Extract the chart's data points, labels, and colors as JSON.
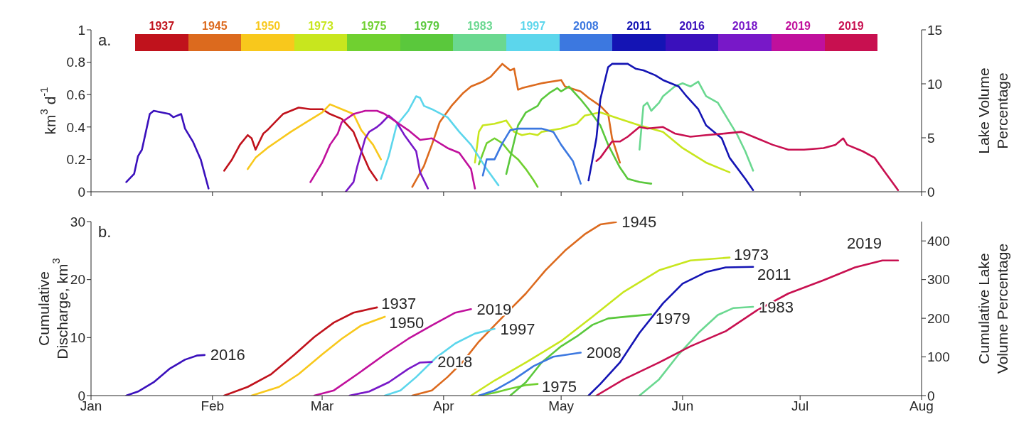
{
  "chart_data": [
    {
      "type": "line",
      "ylabel": "km$^{3}$ d$^{-1}$",
      "y2label": "Lake Volume Percentage",
      "annotations": [
        "a."
      ],
      "xlim": [
        "--01-01",
        "--08-01"
      ],
      "xticks": [
        {
          "value": "--01-01",
          "label": null
        },
        {
          "value": "--02-01",
          "label": null
        },
        {
          "value": "--03-01",
          "label": null
        },
        {
          "value": "--04-01",
          "label": null
        },
        {
          "value": "--05-01",
          "label": null
        },
        {
          "value": "--06-01",
          "label": null
        },
        {
          "value": "--07-01",
          "label": null
        },
        {
          "value": "--08-01",
          "label": null
        }
      ],
      "ylim": [
        0,
        1
      ],
      "yticks": [
        0,
        0.2,
        0.4,
        0.6,
        0.8,
        1
      ],
      "y2lim": [
        0,
        15
      ],
      "y2ticks": [
        0,
        5,
        10,
        15
      ],
      "tick_labels": "y",
      "legend": "top",
      "series": [
        {
          "name": "1937",
          "color": "#c0121c",
          "x": [
            "--02-04",
            "--02-06",
            "--02-08",
            "--02-10",
            "--02-11",
            "--02-12",
            "--02-14",
            "--02-15",
            "--02-17",
            "--02-19",
            "--02-23",
            "--02-26",
            "--03-01",
            "--03-03",
            "--03-06",
            "--03-09",
            "--03-11",
            "--03-13",
            "--03-15"
          ],
          "values": [
            0.13,
            0.2,
            0.29,
            0.35,
            0.33,
            0.26,
            0.36,
            0.38,
            0.43,
            0.48,
            0.52,
            0.51,
            0.51,
            0.48,
            0.45,
            0.37,
            0.25,
            0.14,
            0.07
          ]
        },
        {
          "name": "1945",
          "color": "#dc6a1e",
          "x": [
            "--03-24",
            "--03-27",
            "--03-29",
            "--03-31",
            "--04-03",
            "--04-06",
            "--04-08",
            "--04-11",
            "--04-13",
            "--04-16",
            "--04-18",
            "--04-19",
            "--04-20",
            "--04-21",
            "--04-26",
            "--05-01",
            "--05-02",
            "--05-06",
            "--05-08",
            "--05-11",
            "--05-13",
            "--05-14",
            "--05-16"
          ],
          "values": [
            0.03,
            0.16,
            0.29,
            0.43,
            0.53,
            0.61,
            0.65,
            0.68,
            0.71,
            0.79,
            0.75,
            0.76,
            0.63,
            0.64,
            0.67,
            0.69,
            0.65,
            0.62,
            0.58,
            0.53,
            0.48,
            0.33,
            0.18
          ]
        },
        {
          "name": "1950",
          "color": "#f8c81c",
          "x": [
            "--02-10",
            "--02-12",
            "--02-15",
            "--02-18",
            "--02-21",
            "--02-25",
            "--03-01",
            "--03-03",
            "--03-06",
            "--03-09",
            "--03-11",
            "--03-14",
            "--03-16"
          ],
          "values": [
            0.14,
            0.21,
            0.27,
            0.32,
            0.37,
            0.43,
            0.49,
            0.54,
            0.51,
            0.48,
            0.38,
            0.29,
            0.2
          ]
        },
        {
          "name": "1973",
          "color": "#c8e61e",
          "x": [
            "--04-09",
            "--04-10",
            "--04-11",
            "--04-14",
            "--04-17",
            "--04-19",
            "--04-21",
            "--04-23",
            "--04-25",
            "--04-26",
            "--05-01",
            "--05-05",
            "--05-07",
            "--05-11",
            "--05-16",
            "--05-21",
            "--05-27",
            "--06-01",
            "--06-07",
            "--06-12",
            "--06-13"
          ],
          "values": [
            0.18,
            0.37,
            0.41,
            0.42,
            0.44,
            0.37,
            0.35,
            0.36,
            0.35,
            0.37,
            0.39,
            0.42,
            0.47,
            0.49,
            0.45,
            0.41,
            0.37,
            0.27,
            0.18,
            0.13,
            0.12
          ]
        },
        {
          "name": "1975",
          "color": "#70d030",
          "x": [
            "--04-10",
            "--04-12",
            "--04-14",
            "--04-16",
            "--04-18",
            "--04-20",
            "--04-22",
            "--04-24",
            "--04-25"
          ],
          "values": [
            0.17,
            0.3,
            0.33,
            0.3,
            0.24,
            0.2,
            0.14,
            0.07,
            0.03
          ]
        },
        {
          "name": "1979",
          "color": "#5ac83c",
          "x": [
            "--04-17",
            "--04-18",
            "--04-20",
            "--04-22",
            "--04-25",
            "--04-26",
            "--04-28",
            "--04-30",
            "--05-01",
            "--05-03",
            "--05-06",
            "--05-08",
            "--05-11",
            "--05-13",
            "--05-16",
            "--05-18",
            "--05-21",
            "--05-24"
          ],
          "values": [
            0.11,
            0.21,
            0.41,
            0.49,
            0.53,
            0.57,
            0.61,
            0.64,
            0.62,
            0.65,
            0.57,
            0.51,
            0.41,
            0.29,
            0.15,
            0.08,
            0.06,
            0.05
          ]
        },
        {
          "name": "1983",
          "color": "#6ad890",
          "x": [
            "--05-21",
            "--05-22",
            "--05-23",
            "--05-24",
            "--05-26",
            "--05-27",
            "--05-30",
            "--06-01",
            "--06-03",
            "--06-05",
            "--06-07",
            "--06-10",
            "--06-12",
            "--06-15",
            "--06-17",
            "--06-19"
          ],
          "values": [
            0.26,
            0.53,
            0.55,
            0.5,
            0.55,
            0.59,
            0.65,
            0.67,
            0.65,
            0.68,
            0.59,
            0.55,
            0.47,
            0.35,
            0.25,
            0.13
          ]
        },
        {
          "name": "1997",
          "color": "#5cd6ec",
          "x": [
            "--03-16",
            "--03-18",
            "--03-20",
            "--03-23",
            "--03-25",
            "--03-26",
            "--03-27",
            "--03-29",
            "--04-02",
            "--04-05",
            "--04-08",
            "--04-12",
            "--04-15"
          ],
          "values": [
            0.08,
            0.22,
            0.41,
            0.5,
            0.59,
            0.58,
            0.53,
            0.51,
            0.46,
            0.37,
            0.29,
            0.14,
            0.04
          ]
        },
        {
          "name": "2008",
          "color": "#3c78e0",
          "x": [
            "--04-11",
            "--04-12",
            "--04-14",
            "--04-16",
            "--04-18",
            "--04-20",
            "--04-26",
            "--04-29",
            "--05-01",
            "--05-04",
            "--05-06"
          ],
          "values": [
            0.1,
            0.2,
            0.2,
            0.3,
            0.38,
            0.39,
            0.39,
            0.37,
            0.29,
            0.19,
            0.05
          ]
        },
        {
          "name": "2011",
          "color": "#1414b4",
          "x": [
            "--05-08",
            "--05-10",
            "--05-11",
            "--05-13",
            "--05-14",
            "--05-18",
            "--05-20",
            "--05-22",
            "--05-25",
            "--05-27",
            "--05-31",
            "--06-02",
            "--06-05",
            "--06-07",
            "--06-11",
            "--06-13",
            "--06-17",
            "--06-19"
          ],
          "values": [
            0.07,
            0.33,
            0.57,
            0.77,
            0.79,
            0.79,
            0.76,
            0.75,
            0.72,
            0.69,
            0.65,
            0.59,
            0.51,
            0.41,
            0.33,
            0.21,
            0.08,
            0.01
          ]
        },
        {
          "name": "2016",
          "color": "#3a10bc",
          "x": [
            "--01-10",
            "--01-12",
            "--01-13",
            "--01-14",
            "--01-15",
            "--01-16",
            "--01-17",
            "--01-19",
            "--01-21",
            "--01-22",
            "--01-24",
            "--01-25",
            "--01-27",
            "--01-29",
            "--01-31"
          ],
          "values": [
            0.06,
            0.11,
            0.22,
            0.26,
            0.37,
            0.48,
            0.5,
            0.49,
            0.48,
            0.46,
            0.48,
            0.39,
            0.31,
            0.2,
            0.02
          ]
        },
        {
          "name": "2018",
          "color": "#7818c8",
          "x": [
            "--03-07",
            "--03-09",
            "--03-10",
            "--03-12",
            "--03-13",
            "--03-15",
            "--03-16",
            "--03-18",
            "--03-20",
            "--03-22",
            "--03-25",
            "--03-26",
            "--03-28"
          ],
          "values": [
            0,
            0.06,
            0.16,
            0.33,
            0.37,
            0.4,
            0.42,
            0.47,
            0.43,
            0.35,
            0.25,
            0.12,
            0.02
          ]
        },
        {
          "name": "2019",
          "color": "#c0109c",
          "x": [
            "--02-26",
            "--02-28",
            "--03-01",
            "--03-03",
            "--03-05",
            "--03-06",
            "--03-09",
            "--03-12",
            "--03-15",
            "--03-17",
            "--03-20",
            "--03-23",
            "--03-26",
            "--03-29",
            "--04-02",
            "--04-05",
            "--04-08",
            "--04-09"
          ],
          "values": [
            0.06,
            0.14,
            0.18,
            0.29,
            0.36,
            0.43,
            0.48,
            0.5,
            0.5,
            0.48,
            0.43,
            0.38,
            0.32,
            0.33,
            0.27,
            0.24,
            0.14,
            0.02
          ]
        },
        {
          "name": "2019",
          "color": "#c81050",
          "x": [
            "--05-10",
            "--05-11",
            "--05-14",
            "--05-16",
            "--05-18",
            "--05-21",
            "--05-23",
            "--05-27",
            "--05-30",
            "--06-03",
            "--06-07",
            "--06-12",
            "--06-16",
            "--06-20",
            "--06-24",
            "--06-28",
            "--07-02",
            "--07-07",
            "--07-10",
            "--07-12",
            "--07-13",
            "--07-17",
            "--07-20",
            "--07-23",
            "--07-26"
          ],
          "values": [
            0.19,
            0.21,
            0.31,
            0.31,
            0.34,
            0.4,
            0.39,
            0.4,
            0.36,
            0.34,
            0.35,
            0.36,
            0.37,
            0.33,
            0.29,
            0.26,
            0.26,
            0.27,
            0.29,
            0.33,
            0.29,
            0.25,
            0.21,
            0.11,
            0.01
          ]
        }
      ]
    },
    {
      "type": "line",
      "ylabel": "Cumulative Discharge, km$^{3}$",
      "y2label": "Cumulative Lake Volume Percentage",
      "annotations": [
        "b."
      ],
      "xlim": [
        "--01-01",
        "--08-01"
      ],
      "xticks": [
        {
          "value": "--01-01",
          "label": "Jan"
        },
        {
          "value": "--02-01",
          "label": "Feb"
        },
        {
          "value": "--03-01",
          "label": "Mar"
        },
        {
          "value": "--04-01",
          "label": "Apr"
        },
        {
          "value": "--05-01",
          "label": "May"
        },
        {
          "value": "--06-01",
          "label": "Jun"
        },
        {
          "value": "--07-01",
          "label": "Jul"
        },
        {
          "value": "--08-01",
          "label": "Aug"
        }
      ],
      "ylim": [
        0,
        30
      ],
      "yticks": [
        0,
        10,
        20,
        30
      ],
      "y2lim": [
        0,
        450
      ],
      "y2ticks": [
        0,
        100,
        200,
        300,
        400
      ],
      "legend": false,
      "series": [
        {
          "name": "1937",
          "color": "#c0121c",
          "x": [
            "--02-04",
            "--02-10",
            "--02-16",
            "--02-22",
            "--02-27",
            "--03-04",
            "--03-09",
            "--03-13",
            "--03-15"
          ],
          "values": [
            0,
            1.5,
            3.7,
            7.1,
            10.1,
            12.6,
            14.3,
            14.9,
            15.2
          ]
        },
        {
          "name": "1945",
          "color": "#dc6a1e",
          "x": [
            "--03-24",
            "--03-29",
            "--04-02",
            "--04-06",
            "--04-10",
            "--04-14",
            "--04-17",
            "--04-22",
            "--04-27",
            "--05-02",
            "--05-07",
            "--05-11",
            "--05-15"
          ],
          "values": [
            0,
            0.9,
            3.2,
            5.9,
            9.3,
            12.1,
            14.2,
            17.6,
            21.6,
            25,
            27.8,
            29.5,
            29.9
          ]
        },
        {
          "name": "1950",
          "color": "#f8c81c",
          "x": [
            "--02-11",
            "--02-18",
            "--02-23",
            "--03-01",
            "--03-06",
            "--03-11",
            "--03-17"
          ],
          "values": [
            0,
            1.5,
            3.7,
            7.1,
            9.8,
            12.1,
            13.6
          ]
        },
        {
          "name": "1973",
          "color": "#c8e61e",
          "x": [
            "--04-08",
            "--04-14",
            "--04-22",
            "--05-01",
            "--05-09",
            "--05-17",
            "--05-26",
            "--06-03",
            "--06-13"
          ],
          "values": [
            0,
            2.6,
            5.7,
            9.4,
            13.6,
            17.9,
            21.6,
            23.3,
            23.8
          ]
        },
        {
          "name": "1975",
          "color": "#70d030",
          "x": [
            "--04-10",
            "--04-14",
            "--04-18",
            "--04-22",
            "--04-25"
          ],
          "values": [
            0,
            0.5,
            1.2,
            1.8,
            2
          ]
        },
        {
          "name": "1979",
          "color": "#5ac83c",
          "x": [
            "--04-18",
            "--04-22",
            "--04-26",
            "--05-01",
            "--05-05",
            "--05-09",
            "--05-13",
            "--05-19",
            "--05-24"
          ],
          "values": [
            0,
            2.3,
            5.7,
            8.5,
            10.2,
            12.2,
            13.3,
            13.7,
            14
          ]
        },
        {
          "name": "1983",
          "color": "#6ad890",
          "x": [
            "--05-21",
            "--05-26",
            "--05-31",
            "--06-05",
            "--06-10",
            "--06-14",
            "--06-19"
          ],
          "values": [
            0,
            2.8,
            7.1,
            10.8,
            13.9,
            15.1,
            15.3
          ]
        },
        {
          "name": "1997",
          "color": "#5cd6ec",
          "x": [
            "--03-17",
            "--03-21",
            "--03-25",
            "--03-30",
            "--04-04",
            "--04-09",
            "--04-14"
          ],
          "values": [
            0,
            0.9,
            3.2,
            6.5,
            9,
            10.7,
            11.5
          ]
        },
        {
          "name": "2008",
          "color": "#3c78e0",
          "x": [
            "--04-10",
            "--04-14",
            "--04-19",
            "--04-24",
            "--04-29",
            "--05-06"
          ],
          "values": [
            0,
            0.9,
            2.8,
            5.1,
            6.7,
            7.4
          ]
        },
        {
          "name": "2011",
          "color": "#1414b4",
          "x": [
            "--05-08",
            "--05-11",
            "--05-16",
            "--05-21",
            "--05-27",
            "--06-01",
            "--06-07",
            "--06-12",
            "--06-19"
          ],
          "values": [
            0,
            2,
            5.7,
            10.8,
            15.9,
            19.3,
            21.3,
            22.1,
            22.2
          ]
        },
        {
          "name": "2016",
          "color": "#3a10bc",
          "x": [
            "--01-10",
            "--01-13",
            "--01-17",
            "--01-21",
            "--01-25",
            "--01-28",
            "--01-30"
          ],
          "values": [
            0,
            0.7,
            2.3,
            4.6,
            6.2,
            6.9,
            7
          ]
        },
        {
          "name": "2018",
          "color": "#7818c8",
          "x": [
            "--03-08",
            "--03-13",
            "--03-18",
            "--03-23",
            "--03-26",
            "--03-29"
          ],
          "values": [
            0,
            0.7,
            2.3,
            4.6,
            5.7,
            5.8
          ]
        },
        {
          "name": "2019",
          "color": "#c0109c",
          "x": [
            "--02-27",
            "--03-04",
            "--03-10",
            "--03-17",
            "--03-23",
            "--03-29",
            "--04-04",
            "--04-08"
          ],
          "values": [
            0,
            0.9,
            3.7,
            7.1,
            9.8,
            12.1,
            14.3,
            14.9
          ]
        },
        {
          "name": "2019",
          "color": "#c81050",
          "x": [
            "--05-10",
            "--05-17",
            "--05-26",
            "--06-03",
            "--06-12",
            "--06-20",
            "--06-28",
            "--07-07",
            "--07-15",
            "--07-22",
            "--07-26"
          ],
          "values": [
            0,
            2.8,
            5.7,
            8.5,
            11.1,
            14.7,
            17.6,
            19.9,
            22.1,
            23.3,
            23.3
          ]
        }
      ]
    }
  ]
}
